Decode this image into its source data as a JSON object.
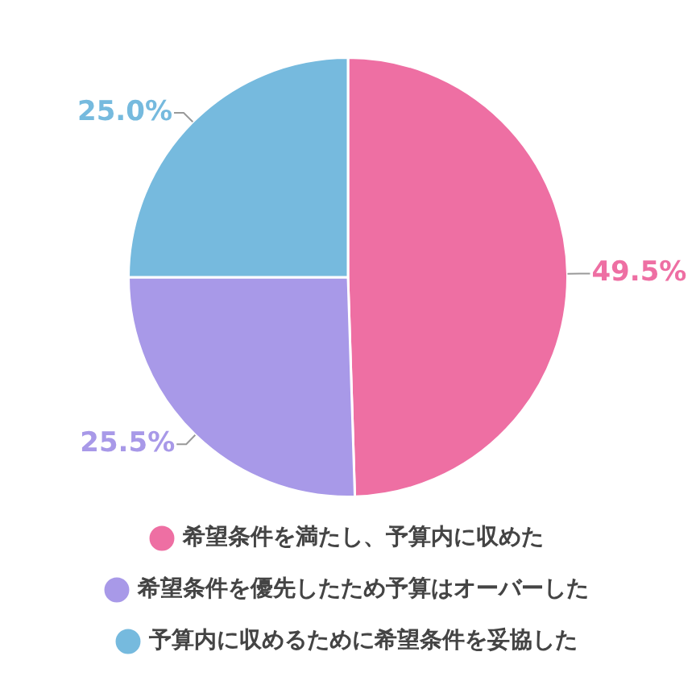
{
  "chart_data": {
    "type": "pie",
    "categories": [
      "希望条件を満たし、予算内に収めた",
      "希望条件を優先したため予算はオーバーした",
      "予算内に収めるために希望条件を妥協した"
    ],
    "values": [
      49.5,
      25.5,
      25.0
    ],
    "colors": [
      "#ee6fa3",
      "#a899e8",
      "#76bade"
    ],
    "value_labels": [
      "49.5%",
      "25.5%",
      "25.0%"
    ],
    "legend": "bottom"
  }
}
